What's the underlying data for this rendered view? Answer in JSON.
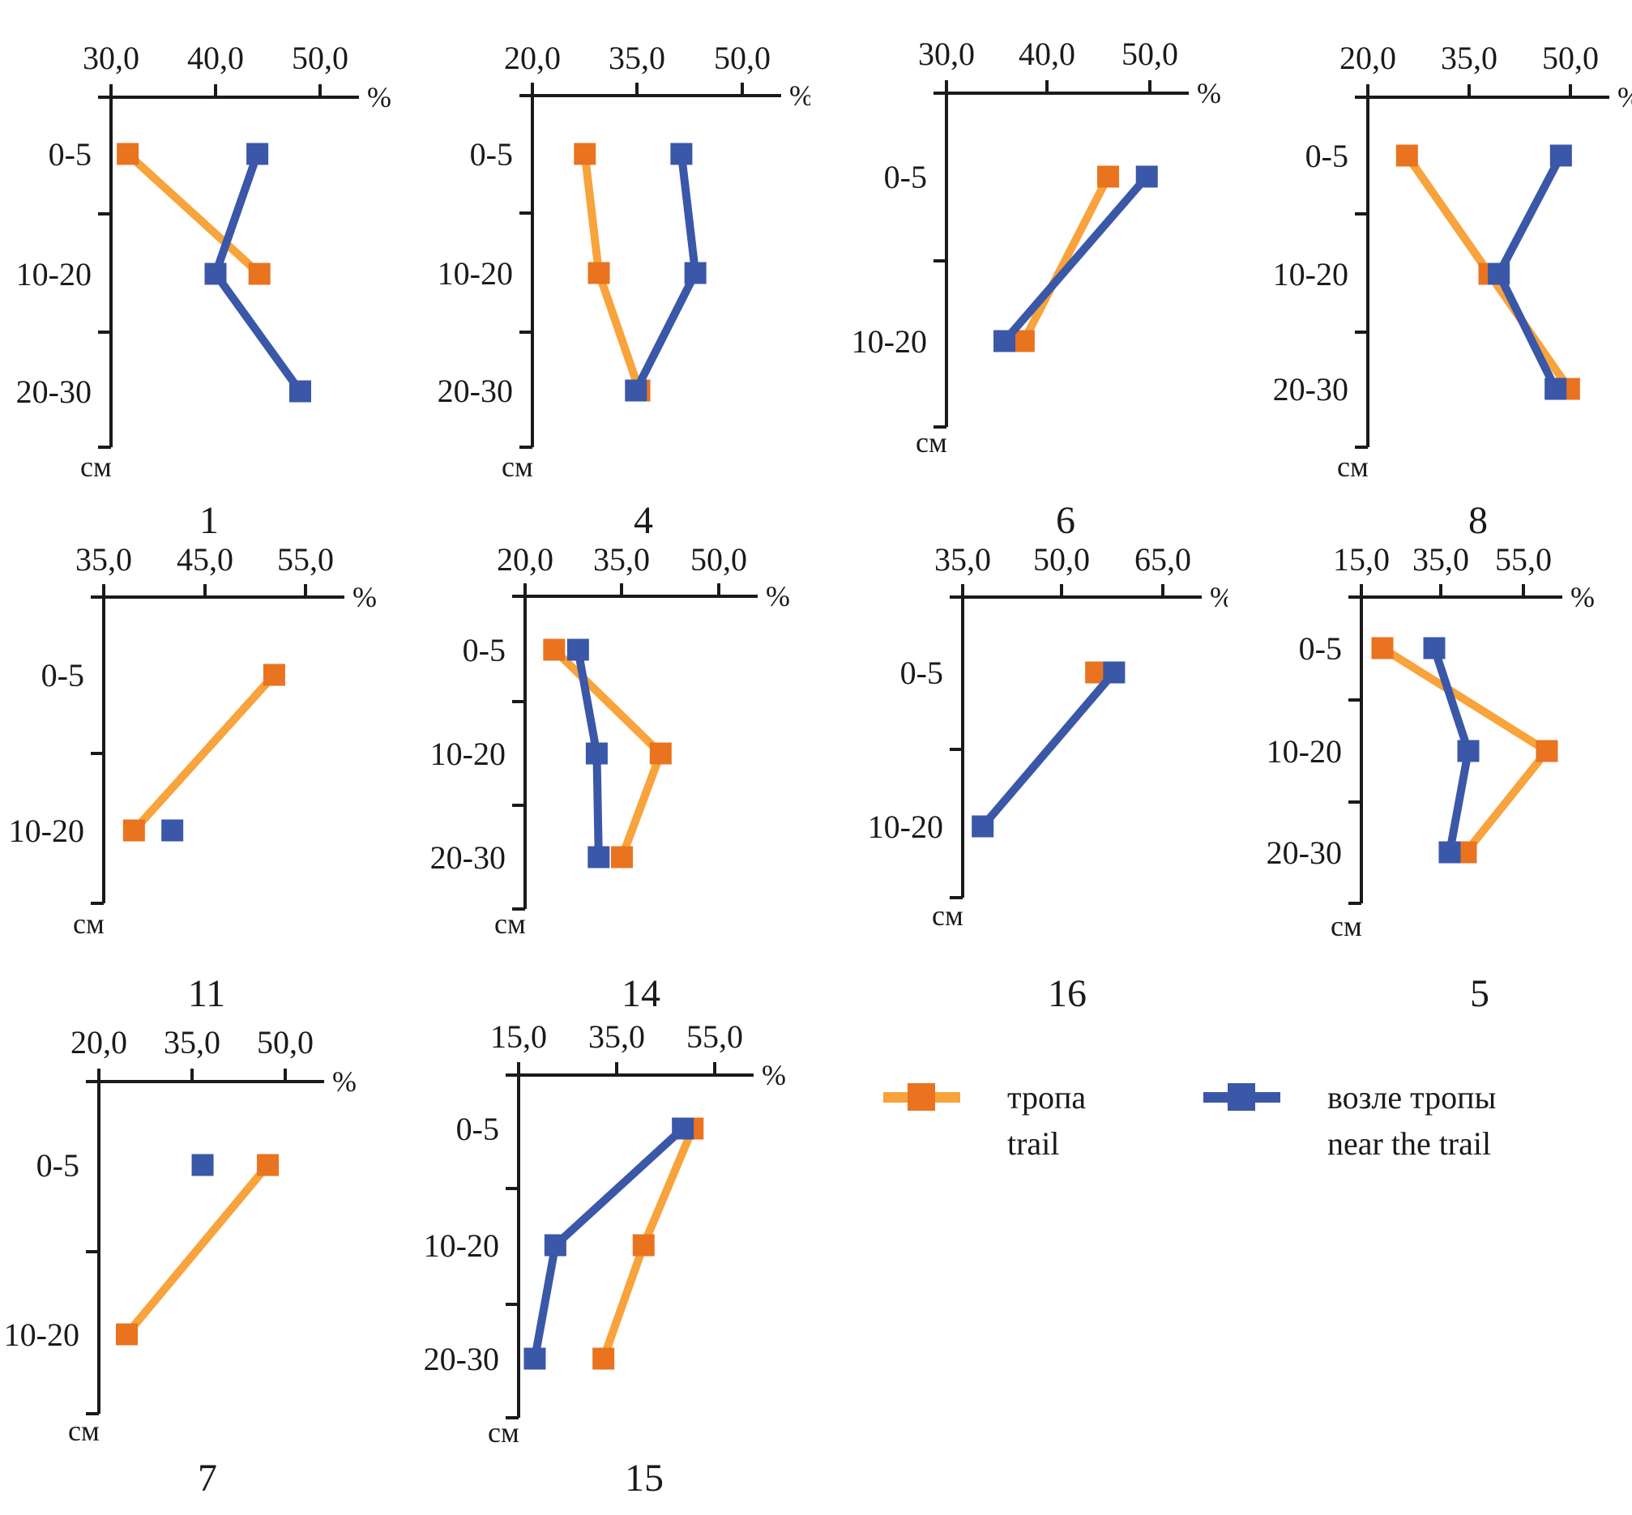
{
  "figure": {
    "description": "Soil profiles: percentage vs depth (см) on and near trails, plots numbered by site",
    "x_unit": "%",
    "y_unit": "см"
  },
  "colors": {
    "trail_marker": "#e9731f",
    "trail_line": "#f8a33b",
    "near_trail_marker": "#3a57a8",
    "near_trail_line": "#3a57a8",
    "axis": "#1a1a1a",
    "text": "#1a1a1a"
  },
  "legend": {
    "items": [
      {
        "key": "trail",
        "label_ru": "тропа",
        "label_en": "trail"
      },
      {
        "key": "near_trail",
        "label_ru": "возле тропы",
        "label_en": "near the trail"
      }
    ]
  },
  "chart_data": [
    {
      "id": "1",
      "type": "line",
      "title": "1",
      "x_unit": "%",
      "y_unit": "см",
      "xticks": [
        30,
        40,
        50
      ],
      "xtick_labels": [
        "30,0",
        "40,0",
        "50,0"
      ],
      "categories": [
        "0-5",
        "10-20",
        "20-30"
      ],
      "series": [
        {
          "name": "trail",
          "values": [
            31.6,
            44.2,
            null
          ]
        },
        {
          "name": "near_trail",
          "values": [
            44.0,
            40.0,
            48.1
          ]
        }
      ]
    },
    {
      "id": "4",
      "type": "line",
      "title": "4",
      "x_unit": "%",
      "y_unit": "см",
      "xticks": [
        20,
        35,
        50
      ],
      "xtick_labels": [
        "20,0",
        "35,0",
        "50,0"
      ],
      "categories": [
        "0-5",
        "10-20",
        "20-30"
      ],
      "series": [
        {
          "name": "trail",
          "values": [
            27.5,
            29.5,
            35.3
          ]
        },
        {
          "name": "near_trail",
          "values": [
            41.3,
            43.3,
            34.8
          ]
        }
      ]
    },
    {
      "id": "6",
      "type": "line",
      "title": "6",
      "x_unit": "%",
      "y_unit": "см",
      "xticks": [
        30,
        40,
        50
      ],
      "xtick_labels": [
        "30,0",
        "40,0",
        "50,0"
      ],
      "categories": [
        "0-5",
        "10-20"
      ],
      "series": [
        {
          "name": "trail",
          "values": [
            45.9,
            37.6
          ]
        },
        {
          "name": "near_trail",
          "values": [
            49.7,
            35.7
          ]
        }
      ]
    },
    {
      "id": "8",
      "type": "line",
      "title": "8",
      "x_unit": "%",
      "y_unit": "см",
      "xticks": [
        20,
        35,
        50
      ],
      "xtick_labels": [
        "20,0",
        "35,0",
        "50,0"
      ],
      "categories": [
        "0-5",
        "10-20",
        "20-30"
      ],
      "series": [
        {
          "name": "trail",
          "values": [
            25.8,
            38.0,
            49.8
          ]
        },
        {
          "name": "near_trail",
          "values": [
            48.6,
            39.4,
            47.8
          ]
        }
      ]
    },
    {
      "id": "11",
      "type": "line",
      "title": "11",
      "x_unit": "%",
      "y_unit": "см",
      "xticks": [
        35,
        45,
        55
      ],
      "xtick_labels": [
        "35,0",
        "45,0",
        "55,0"
      ],
      "categories": [
        "0-5",
        "10-20"
      ],
      "series": [
        {
          "name": "trail",
          "values": [
            51.9,
            38.0
          ]
        },
        {
          "name": "near_trail",
          "values": [
            null,
            41.8
          ]
        }
      ]
    },
    {
      "id": "14",
      "type": "line",
      "title": "14",
      "x_unit": "%",
      "y_unit": "см",
      "xticks": [
        20,
        35,
        50
      ],
      "xtick_labels": [
        "20,0",
        "35,0",
        "50,0"
      ],
      "categories": [
        "0-5",
        "10-20",
        "20-30"
      ],
      "series": [
        {
          "name": "trail",
          "values": [
            24.5,
            41.0,
            35.0
          ]
        },
        {
          "name": "near_trail",
          "values": [
            28.2,
            31.1,
            31.4
          ]
        }
      ]
    },
    {
      "id": "16",
      "type": "line",
      "title": "16",
      "x_unit": "%",
      "y_unit": "см",
      "xticks": [
        35,
        50,
        65
      ],
      "xtick_labels": [
        "35,0",
        "50,0",
        "65,0"
      ],
      "categories": [
        "0-5",
        "10-20"
      ],
      "series": [
        {
          "name": "trail",
          "values": [
            55.0,
            null
          ]
        },
        {
          "name": "near_trail",
          "values": [
            57.7,
            38.0
          ]
        }
      ]
    },
    {
      "id": "5",
      "type": "line",
      "title": "5",
      "x_unit": "%",
      "y_unit": "см",
      "xticks": [
        15,
        35,
        55
      ],
      "xtick_labels": [
        "15,0",
        "35,0",
        "55,0"
      ],
      "categories": [
        "0-5",
        "10-20",
        "20-30"
      ],
      "series": [
        {
          "name": "trail",
          "values": [
            20.2,
            60.8,
            40.8
          ]
        },
        {
          "name": "near_trail",
          "values": [
            33.0,
            41.4,
            36.8
          ]
        }
      ]
    },
    {
      "id": "7",
      "type": "line",
      "title": "7",
      "x_unit": "%",
      "y_unit": "см",
      "xticks": [
        20,
        35,
        50
      ],
      "xtick_labels": [
        "20,0",
        "35,0",
        "50,0"
      ],
      "categories": [
        "0-5",
        "10-20"
      ],
      "series": [
        {
          "name": "trail",
          "values": [
            47.2,
            24.5
          ]
        },
        {
          "name": "near_trail",
          "values": [
            36.7,
            null
          ]
        }
      ]
    },
    {
      "id": "15",
      "type": "line",
      "title": "15",
      "x_unit": "%",
      "y_unit": "см",
      "xticks": [
        15,
        35,
        55
      ],
      "xtick_labels": [
        "15,0",
        "35,0",
        "55,0"
      ],
      "categories": [
        "0-5",
        "10-20",
        "20-30"
      ],
      "series": [
        {
          "name": "trail",
          "values": [
            50.5,
            40.5,
            32.3
          ]
        },
        {
          "name": "near_trail",
          "values": [
            48.5,
            22.5,
            18.3
          ]
        }
      ]
    }
  ]
}
